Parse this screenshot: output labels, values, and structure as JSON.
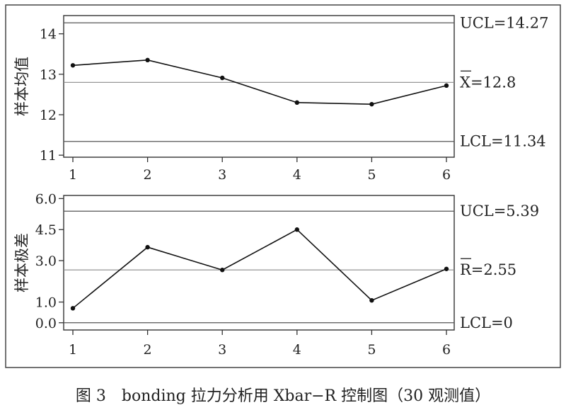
{
  "caption": "图 3　bonding 拉力分析用 Xbar−R 控制图（30 观测值）",
  "chart_data": [
    {
      "type": "line",
      "id": "xbar",
      "ylabel": "样本均值",
      "x": [
        1,
        2,
        3,
        4,
        5,
        6
      ],
      "values": [
        13.22,
        13.35,
        12.91,
        12.3,
        12.26,
        12.72
      ],
      "ylim": [
        10.95,
        14.45
      ],
      "yticks": [
        11,
        12,
        13,
        14
      ],
      "ytick_labels": [
        "11",
        "12",
        "13",
        "14"
      ],
      "xtick_labels": [
        "1",
        "2",
        "3",
        "4",
        "5",
        "6"
      ],
      "limits": [
        {
          "key": "ucl",
          "value": 14.27,
          "label": "UCL=14.27"
        },
        {
          "key": "center",
          "value": 12.8,
          "label": "X=12.8",
          "overbar": true
        },
        {
          "key": "lcl",
          "value": 11.34,
          "label": "LCL=11.34"
        }
      ]
    },
    {
      "type": "line",
      "id": "range",
      "ylabel": "样本极差",
      "x": [
        1,
        2,
        3,
        4,
        5,
        6
      ],
      "values": [
        0.7,
        3.65,
        2.55,
        4.5,
        1.08,
        2.6
      ],
      "ylim": [
        -0.35,
        6.15
      ],
      "yticks": [
        0,
        1,
        3,
        4.5,
        6
      ],
      "ytick_labels": [
        "0.0",
        "1.0",
        "3.0",
        "4.5",
        "6.0"
      ],
      "xtick_labels": [
        "1",
        "2",
        "3",
        "4",
        "5",
        "6"
      ],
      "limits": [
        {
          "key": "ucl",
          "value": 5.39,
          "label": "UCL=5.39"
        },
        {
          "key": "center",
          "value": 2.55,
          "label": "R=2.55",
          "overbar": true
        },
        {
          "key": "lcl",
          "value": 0,
          "label": "LCL=0"
        }
      ]
    }
  ]
}
